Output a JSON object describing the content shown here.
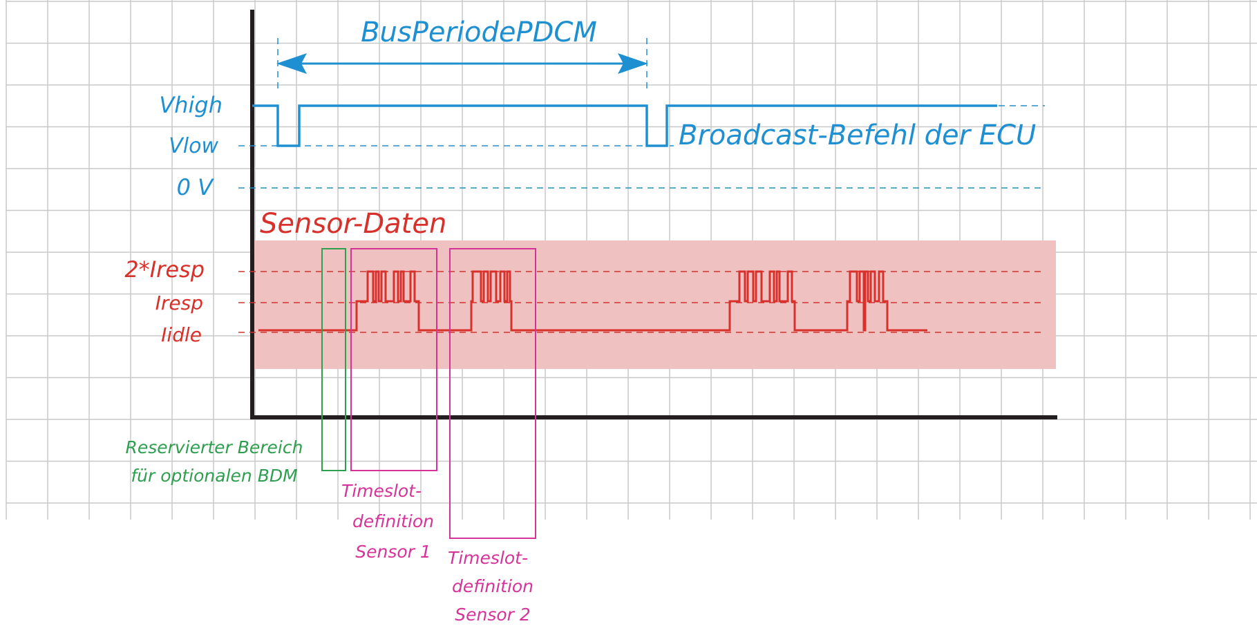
{
  "bus_period_label": "BusPeriodePDCM",
  "voltage_levels": {
    "high": "Vhigh",
    "low": "Vlow",
    "zero": "0 V"
  },
  "broadcast_label": "Broadcast-Befehl der ECU",
  "sensor_data_label": "Sensor-Daten",
  "current_levels": {
    "double_resp": "2*Iresp",
    "resp": "Iresp",
    "idle": "Iidle"
  },
  "reserved_area_label": {
    "line1": "Reservierter Bereich",
    "line2": "für optionalen BDM"
  },
  "timeslot_sensor1_label": {
    "line1": "Timeslot-",
    "line2": "definition",
    "line3": "Sensor 1"
  },
  "timeslot_sensor2_label": {
    "line1": "Timeslot-",
    "line2": "definition",
    "line3": "Sensor 2"
  },
  "colors": {
    "grid": "#c8c8c8",
    "axis": "#231f20",
    "bus_signal": "#1e90d2",
    "sensor_signal": "#d8302a",
    "sensor_band": "#efc1c1",
    "reserved_box": "#2e9e4f",
    "timeslot_box": "#d6339a"
  }
}
